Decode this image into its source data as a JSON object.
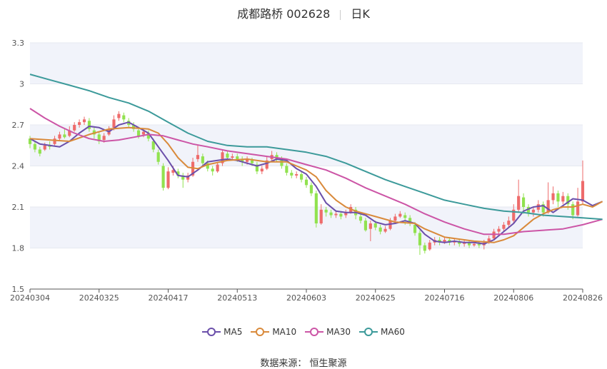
{
  "header": {
    "stock": "成都路桥 002628",
    "period": "日K"
  },
  "source": "数据来源： 恒生聚源",
  "colors": {
    "up": "#ee6b6b",
    "down": "#91e24f",
    "ma5": "#6b4faa",
    "ma10": "#d98a3b",
    "ma30": "#cc55a6",
    "ma60": "#3c9a9a",
    "band": "#f1f3fa"
  },
  "chart_data": {
    "type": "candlestick",
    "title": "成都路桥 002628",
    "subtitle": "日K",
    "ylim": [
      1.5,
      3.3
    ],
    "yticks": [
      "1.5",
      "1.8",
      "2.1",
      "2.4",
      "2.7",
      "3",
      "3.3"
    ],
    "xticks": [
      {
        "label": "20240304",
        "index": 0
      },
      {
        "label": "20240325",
        "index": 14
      },
      {
        "label": "20240417",
        "index": 28
      },
      {
        "label": "20240513",
        "index": 42
      },
      {
        "label": "20240603",
        "index": 56
      },
      {
        "label": "20240625",
        "index": 70
      },
      {
        "label": "20240716",
        "index": 84
      },
      {
        "label": "20240806",
        "index": 98
      },
      {
        "label": "20240826",
        "index": 112
      }
    ],
    "candles": [
      [
        2.6,
        2.56,
        2.62,
        2.53
      ],
      [
        2.56,
        2.52,
        2.58,
        2.5
      ],
      [
        2.52,
        2.49,
        2.54,
        2.47
      ],
      [
        2.52,
        2.55,
        2.57,
        2.51
      ],
      [
        2.55,
        2.54,
        2.58,
        2.52
      ],
      [
        2.56,
        2.6,
        2.62,
        2.55
      ],
      [
        2.6,
        2.63,
        2.65,
        2.58
      ],
      [
        2.63,
        2.61,
        2.67,
        2.6
      ],
      [
        2.62,
        2.66,
        2.69,
        2.61
      ],
      [
        2.66,
        2.7,
        2.72,
        2.65
      ],
      [
        2.7,
        2.72,
        2.74,
        2.68
      ],
      [
        2.72,
        2.74,
        2.76,
        2.7
      ],
      [
        2.73,
        2.67,
        2.75,
        2.65
      ],
      [
        2.66,
        2.63,
        2.68,
        2.6
      ],
      [
        2.63,
        2.58,
        2.65,
        2.56
      ],
      [
        2.59,
        2.62,
        2.64,
        2.57
      ],
      [
        2.63,
        2.67,
        2.69,
        2.62
      ],
      [
        2.68,
        2.74,
        2.77,
        2.66
      ],
      [
        2.75,
        2.78,
        2.8,
        2.73
      ],
      [
        2.77,
        2.74,
        2.79,
        2.72
      ],
      [
        2.73,
        2.7,
        2.75,
        2.68
      ],
      [
        2.7,
        2.67,
        2.72,
        2.65
      ],
      [
        2.66,
        2.62,
        2.68,
        2.6
      ],
      [
        2.63,
        2.65,
        2.67,
        2.61
      ],
      [
        2.64,
        2.6,
        2.66,
        2.58
      ],
      [
        2.58,
        2.52,
        2.6,
        2.5
      ],
      [
        2.5,
        2.43,
        2.52,
        2.41
      ],
      [
        2.4,
        2.24,
        2.42,
        2.22
      ],
      [
        2.24,
        2.36,
        2.39,
        2.23
      ],
      [
        2.35,
        2.37,
        2.4,
        2.33
      ],
      [
        2.36,
        2.33,
        2.38,
        2.31
      ],
      [
        2.33,
        2.3,
        2.35,
        2.24
      ],
      [
        2.3,
        2.33,
        2.35,
        2.28
      ],
      [
        2.33,
        2.43,
        2.46,
        2.32
      ],
      [
        2.45,
        2.48,
        2.55,
        2.43
      ],
      [
        2.47,
        2.42,
        2.49,
        2.4
      ],
      [
        2.42,
        2.38,
        2.44,
        2.36
      ],
      [
        2.38,
        2.36,
        2.4,
        2.33
      ],
      [
        2.36,
        2.41,
        2.43,
        2.35
      ],
      [
        2.42,
        2.5,
        2.52,
        2.4
      ],
      [
        2.49,
        2.46,
        2.51,
        2.44
      ],
      [
        2.46,
        2.47,
        2.49,
        2.44
      ],
      [
        2.47,
        2.45,
        2.49,
        2.43
      ],
      [
        2.45,
        2.43,
        2.47,
        2.4
      ],
      [
        2.43,
        2.45,
        2.47,
        2.41
      ],
      [
        2.44,
        2.42,
        2.46,
        2.4
      ],
      [
        2.41,
        2.36,
        2.43,
        2.34
      ],
      [
        2.36,
        2.38,
        2.4,
        2.34
      ],
      [
        2.38,
        2.44,
        2.47,
        2.37
      ],
      [
        2.45,
        2.48,
        2.51,
        2.43
      ],
      [
        2.48,
        2.45,
        2.5,
        2.43
      ],
      [
        2.45,
        2.4,
        2.47,
        2.38
      ],
      [
        2.4,
        2.35,
        2.42,
        2.33
      ],
      [
        2.35,
        2.33,
        2.37,
        2.31
      ],
      [
        2.33,
        2.34,
        2.36,
        2.31
      ],
      [
        2.34,
        2.3,
        2.36,
        2.28
      ],
      [
        2.3,
        2.26,
        2.32,
        2.24
      ],
      [
        2.26,
        2.2,
        2.28,
        2.18
      ],
      [
        2.2,
        1.98,
        2.22,
        1.95
      ],
      [
        1.98,
        2.08,
        2.12,
        1.97
      ],
      [
        2.08,
        2.06,
        2.1,
        2.03
      ],
      [
        2.06,
        2.04,
        2.08,
        2.02
      ],
      [
        2.04,
        2.05,
        2.07,
        2.02
      ],
      [
        2.05,
        2.03,
        2.07,
        2.01
      ],
      [
        2.04,
        2.06,
        2.08,
        2.02
      ],
      [
        2.06,
        2.1,
        2.12,
        2.05
      ],
      [
        2.08,
        2.04,
        2.1,
        2.01
      ],
      [
        2.03,
        2.0,
        2.06,
        1.98
      ],
      [
        2.0,
        1.93,
        2.02,
        1.92
      ],
      [
        1.94,
        1.98,
        2.0,
        1.85
      ],
      [
        1.98,
        1.95,
        2.0,
        1.93
      ],
      [
        1.95,
        1.92,
        1.97,
        1.9
      ],
      [
        1.92,
        1.94,
        1.96,
        1.91
      ],
      [
        1.94,
        2.0,
        2.02,
        1.93
      ],
      [
        2.0,
        2.03,
        2.05,
        1.98
      ],
      [
        2.03,
        2.05,
        2.07,
        2.02
      ],
      [
        2.04,
        2.02,
        2.06,
        1.97
      ],
      [
        2.02,
        1.98,
        2.04,
        1.96
      ],
      [
        1.97,
        1.91,
        1.99,
        1.89
      ],
      [
        1.91,
        1.82,
        1.93,
        1.75
      ],
      [
        1.82,
        1.78,
        1.84,
        1.76
      ],
      [
        1.79,
        1.84,
        1.86,
        1.78
      ],
      [
        1.84,
        1.86,
        1.88,
        1.82
      ],
      [
        1.86,
        1.84,
        1.88,
        1.82
      ],
      [
        1.84,
        1.86,
        1.88,
        1.83
      ],
      [
        1.86,
        1.84,
        1.88,
        1.82
      ],
      [
        1.84,
        1.85,
        1.87,
        1.82
      ],
      [
        1.85,
        1.83,
        1.87,
        1.81
      ],
      [
        1.83,
        1.84,
        1.86,
        1.81
      ],
      [
        1.84,
        1.82,
        1.86,
        1.8
      ],
      [
        1.82,
        1.83,
        1.85,
        1.81
      ],
      [
        1.83,
        1.82,
        1.85,
        1.8
      ],
      [
        1.82,
        1.84,
        1.86,
        1.79
      ],
      [
        1.84,
        1.87,
        1.89,
        1.83
      ],
      [
        1.87,
        1.92,
        1.94,
        1.86
      ],
      [
        1.92,
        1.94,
        1.96,
        1.9
      ],
      [
        1.94,
        1.97,
        1.99,
        1.92
      ],
      [
        1.97,
        2.0,
        2.03,
        1.95
      ],
      [
        2.0,
        2.08,
        2.12,
        1.98
      ],
      [
        2.08,
        2.18,
        2.3,
        2.06
      ],
      [
        2.17,
        2.1,
        2.2,
        2.05
      ],
      [
        2.1,
        2.06,
        2.12,
        2.03
      ],
      [
        2.06,
        2.08,
        2.1,
        2.03
      ],
      [
        2.08,
        2.12,
        2.15,
        2.06
      ],
      [
        2.12,
        2.06,
        2.14,
        2.03
      ],
      [
        2.06,
        2.15,
        2.28,
        2.05
      ],
      [
        2.15,
        2.2,
        2.25,
        2.12
      ],
      [
        2.2,
        2.14,
        2.22,
        2.1
      ],
      [
        2.14,
        2.18,
        2.21,
        2.12
      ],
      [
        2.18,
        2.12,
        2.2,
        2.08
      ],
      [
        2.12,
        2.04,
        2.14,
        2.01
      ],
      [
        2.04,
        2.14,
        2.24,
        2.03
      ],
      [
        2.14,
        2.29,
        2.44,
        2.12
      ]
    ],
    "series": [
      {
        "name": "MA5",
        "key": "ma5",
        "values": [
          [
            0,
            2.6
          ],
          [
            2,
            2.56
          ],
          [
            4,
            2.55
          ],
          [
            6,
            2.54
          ],
          [
            8,
            2.58
          ],
          [
            10,
            2.64
          ],
          [
            12,
            2.69
          ],
          [
            14,
            2.68
          ],
          [
            16,
            2.65
          ],
          [
            18,
            2.7
          ],
          [
            20,
            2.72
          ],
          [
            22,
            2.68
          ],
          [
            24,
            2.64
          ],
          [
            26,
            2.54
          ],
          [
            28,
            2.44
          ],
          [
            30,
            2.33
          ],
          [
            32,
            2.32
          ],
          [
            34,
            2.37
          ],
          [
            36,
            2.43
          ],
          [
            38,
            2.44
          ],
          [
            40,
            2.45
          ],
          [
            42,
            2.44
          ],
          [
            44,
            2.42
          ],
          [
            46,
            2.4
          ],
          [
            48,
            2.42
          ],
          [
            50,
            2.45
          ],
          [
            52,
            2.44
          ],
          [
            54,
            2.38
          ],
          [
            56,
            2.34
          ],
          [
            58,
            2.25
          ],
          [
            60,
            2.13
          ],
          [
            62,
            2.07
          ],
          [
            64,
            2.06
          ],
          [
            66,
            2.06
          ],
          [
            68,
            2.04
          ],
          [
            70,
            1.99
          ],
          [
            72,
            1.97
          ],
          [
            74,
            1.98
          ],
          [
            76,
            2.0
          ],
          [
            78,
            1.98
          ],
          [
            80,
            1.9
          ],
          [
            82,
            1.85
          ],
          [
            84,
            1.84
          ],
          [
            86,
            1.85
          ],
          [
            88,
            1.84
          ],
          [
            90,
            1.84
          ],
          [
            92,
            1.83
          ],
          [
            94,
            1.86
          ],
          [
            96,
            1.92
          ],
          [
            98,
            1.98
          ],
          [
            100,
            2.07
          ],
          [
            102,
            2.1
          ],
          [
            104,
            2.11
          ],
          [
            106,
            2.06
          ],
          [
            108,
            2.11
          ],
          [
            110,
            2.16
          ],
          [
            112,
            2.15
          ],
          [
            114,
            2.11
          ],
          [
            116,
            2.14
          ]
        ]
      },
      {
        "name": "MA10",
        "key": "ma10",
        "values": [
          [
            0,
            2.6
          ],
          [
            4,
            2.59
          ],
          [
            8,
            2.58
          ],
          [
            12,
            2.63
          ],
          [
            16,
            2.67
          ],
          [
            20,
            2.68
          ],
          [
            24,
            2.67
          ],
          [
            26,
            2.64
          ],
          [
            28,
            2.56
          ],
          [
            30,
            2.46
          ],
          [
            32,
            2.39
          ],
          [
            34,
            2.38
          ],
          [
            36,
            2.41
          ],
          [
            40,
            2.44
          ],
          [
            44,
            2.45
          ],
          [
            48,
            2.43
          ],
          [
            52,
            2.43
          ],
          [
            54,
            2.4
          ],
          [
            56,
            2.37
          ],
          [
            58,
            2.32
          ],
          [
            60,
            2.22
          ],
          [
            62,
            2.15
          ],
          [
            64,
            2.1
          ],
          [
            66,
            2.07
          ],
          [
            70,
            2.03
          ],
          [
            74,
            1.99
          ],
          [
            78,
            1.98
          ],
          [
            80,
            1.94
          ],
          [
            82,
            1.91
          ],
          [
            84,
            1.88
          ],
          [
            86,
            1.87
          ],
          [
            90,
            1.85
          ],
          [
            94,
            1.84
          ],
          [
            96,
            1.86
          ],
          [
            98,
            1.89
          ],
          [
            100,
            1.95
          ],
          [
            102,
            2.01
          ],
          [
            104,
            2.05
          ],
          [
            106,
            2.08
          ],
          [
            108,
            2.1
          ],
          [
            110,
            2.1
          ],
          [
            112,
            2.12
          ],
          [
            114,
            2.1
          ],
          [
            116,
            2.14
          ]
        ]
      },
      {
        "name": "MA30",
        "key": "ma30",
        "values": [
          [
            0,
            2.82
          ],
          [
            3,
            2.75
          ],
          [
            6,
            2.69
          ],
          [
            9,
            2.64
          ],
          [
            12,
            2.6
          ],
          [
            15,
            2.58
          ],
          [
            18,
            2.59
          ],
          [
            21,
            2.61
          ],
          [
            24,
            2.63
          ],
          [
            27,
            2.62
          ],
          [
            30,
            2.59
          ],
          [
            33,
            2.56
          ],
          [
            36,
            2.54
          ],
          [
            40,
            2.51
          ],
          [
            44,
            2.49
          ],
          [
            48,
            2.47
          ],
          [
            52,
            2.45
          ],
          [
            56,
            2.41
          ],
          [
            60,
            2.37
          ],
          [
            64,
            2.31
          ],
          [
            68,
            2.24
          ],
          [
            72,
            2.18
          ],
          [
            76,
            2.12
          ],
          [
            80,
            2.05
          ],
          [
            84,
            1.99
          ],
          [
            88,
            1.94
          ],
          [
            92,
            1.9
          ],
          [
            96,
            1.9
          ],
          [
            100,
            1.92
          ],
          [
            104,
            1.93
          ],
          [
            108,
            1.94
          ],
          [
            112,
            1.97
          ],
          [
            116,
            2.01
          ]
        ]
      },
      {
        "name": "MA60",
        "key": "ma60",
        "values": [
          [
            0,
            3.07
          ],
          [
            4,
            3.03
          ],
          [
            8,
            2.99
          ],
          [
            12,
            2.95
          ],
          [
            16,
            2.9
          ],
          [
            20,
            2.86
          ],
          [
            24,
            2.8
          ],
          [
            28,
            2.72
          ],
          [
            32,
            2.64
          ],
          [
            36,
            2.58
          ],
          [
            40,
            2.55
          ],
          [
            44,
            2.54
          ],
          [
            48,
            2.54
          ],
          [
            52,
            2.52
          ],
          [
            56,
            2.5
          ],
          [
            60,
            2.47
          ],
          [
            64,
            2.42
          ],
          [
            68,
            2.36
          ],
          [
            72,
            2.3
          ],
          [
            76,
            2.25
          ],
          [
            80,
            2.2
          ],
          [
            84,
            2.15
          ],
          [
            88,
            2.12
          ],
          [
            92,
            2.09
          ],
          [
            96,
            2.07
          ],
          [
            100,
            2.06
          ],
          [
            104,
            2.04
          ],
          [
            108,
            2.03
          ],
          [
            112,
            2.02
          ],
          [
            116,
            2.01
          ]
        ]
      }
    ]
  }
}
